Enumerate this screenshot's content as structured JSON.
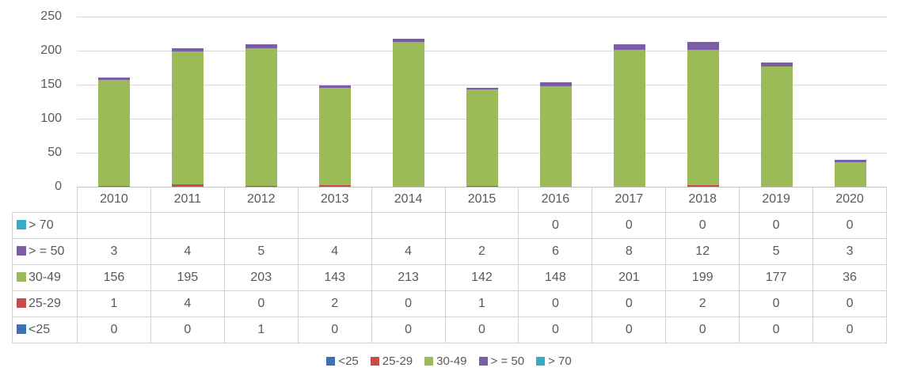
{
  "colors": {
    "text": "#595959",
    "gridline": "#D9D9D9",
    "axis_line": "#C3C3C3",
    "table_border": "#D2D2D2",
    "series_lt25": "#3E6FB7",
    "series_25_29": "#C94A47",
    "series_30_49": "#9BBB59",
    "series_gte50": "#7A5CA7",
    "series_gt70": "#35AEC3"
  },
  "chart_data": {
    "type": "bar",
    "stacked": true,
    "title": "",
    "xlabel": "",
    "ylabel": "",
    "categories": [
      "2010",
      "2011",
      "2012",
      "2013",
      "2014",
      "2015",
      "2016",
      "2017",
      "2018",
      "2019",
      "2020"
    ],
    "series": [
      {
        "name": "<25",
        "color": "#3E6FB7",
        "values": [
          0,
          0,
          1,
          0,
          0,
          0,
          0,
          0,
          0,
          0,
          0
        ]
      },
      {
        "name": "25-29",
        "color": "#C94A47",
        "values": [
          1,
          4,
          0,
          2,
          0,
          1,
          0,
          0,
          2,
          0,
          0
        ]
      },
      {
        "name": "30-49",
        "color": "#9BBB59",
        "values": [
          156,
          195,
          203,
          143,
          213,
          142,
          148,
          201,
          199,
          177,
          36
        ]
      },
      {
        "name": "> = 50",
        "color": "#7A5CA7",
        "values": [
          3,
          4,
          5,
          4,
          4,
          2,
          6,
          8,
          12,
          5,
          3
        ]
      },
      {
        "name": "> 70",
        "color": "#35AEC3",
        "values": [
          null,
          null,
          null,
          null,
          null,
          null,
          0,
          0,
          0,
          0,
          0
        ]
      }
    ],
    "ylim": [
      0,
      250
    ],
    "yticks": [
      0,
      50,
      100,
      150,
      200,
      250
    ],
    "grid": true,
    "legend_position": "bottom"
  },
  "table": {
    "years": [
      "2010",
      "2011",
      "2012",
      "2013",
      "2014",
      "2015",
      "2016",
      "2017",
      "2018",
      "2019",
      "2020"
    ],
    "rows": [
      {
        "label": "> 70",
        "color": "#35AEC3",
        "values": [
          "",
          "",
          "",
          "",
          "",
          "",
          "0",
          "0",
          "0",
          "0",
          "0"
        ]
      },
      {
        "label": "> = 50",
        "color": "#7A5CA7",
        "values": [
          "3",
          "4",
          "5",
          "4",
          "4",
          "2",
          "6",
          "8",
          "12",
          "5",
          "3"
        ]
      },
      {
        "label": "30-49",
        "color": "#9BBB59",
        "values": [
          "156",
          "195",
          "203",
          "143",
          "213",
          "142",
          "148",
          "201",
          "199",
          "177",
          "36"
        ]
      },
      {
        "label": "25-29",
        "color": "#C94A47",
        "values": [
          "1",
          "4",
          "0",
          "2",
          "0",
          "1",
          "0",
          "0",
          "2",
          "0",
          "0"
        ]
      },
      {
        "label": "<25",
        "color": "#3E6FB7",
        "values": [
          "0",
          "0",
          "1",
          "0",
          "0",
          "0",
          "0",
          "0",
          "0",
          "0",
          "0"
        ]
      }
    ]
  },
  "legend": [
    {
      "label": "<25",
      "color": "#3E6FB7"
    },
    {
      "label": "25-29",
      "color": "#C94A47"
    },
    {
      "label": "30-49",
      "color": "#9BBB59"
    },
    {
      "label": "> = 50",
      "color": "#7A5CA7"
    },
    {
      "label": "> 70",
      "color": "#35AEC3"
    }
  ]
}
